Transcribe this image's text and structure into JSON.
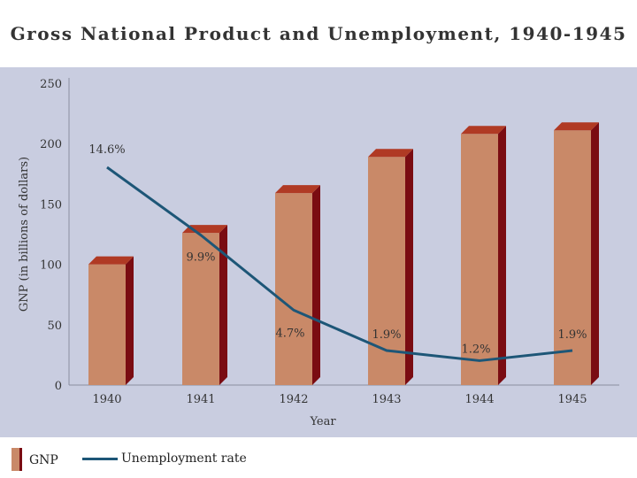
{
  "chart_data": {
    "type": "bar",
    "title": "Gross National Product and Unemployment, 1940-1945",
    "xlabel": "Year",
    "ylabel": "GNP (in billions of dollars)",
    "ylim": [
      0,
      250
    ],
    "yticks": [
      0,
      50,
      100,
      150,
      200,
      250
    ],
    "categories": [
      "1940",
      "1941",
      "1942",
      "1943",
      "1944",
      "1945"
    ],
    "series": [
      {
        "name": "GNP",
        "type": "bar",
        "values": [
          100,
          126,
          159,
          189,
          208,
          211
        ],
        "color": "#c98968"
      },
      {
        "name": "Unemployment rate",
        "type": "line",
        "values": [
          14.6,
          9.9,
          4.7,
          1.9,
          1.2,
          1.9
        ],
        "labels": [
          "14.6%",
          "9.9%",
          "4.7%",
          "1.9%",
          "1.2%",
          "1.9%"
        ],
        "color": "#1d5677"
      }
    ],
    "legend": "bottom-left",
    "grid": false
  }
}
